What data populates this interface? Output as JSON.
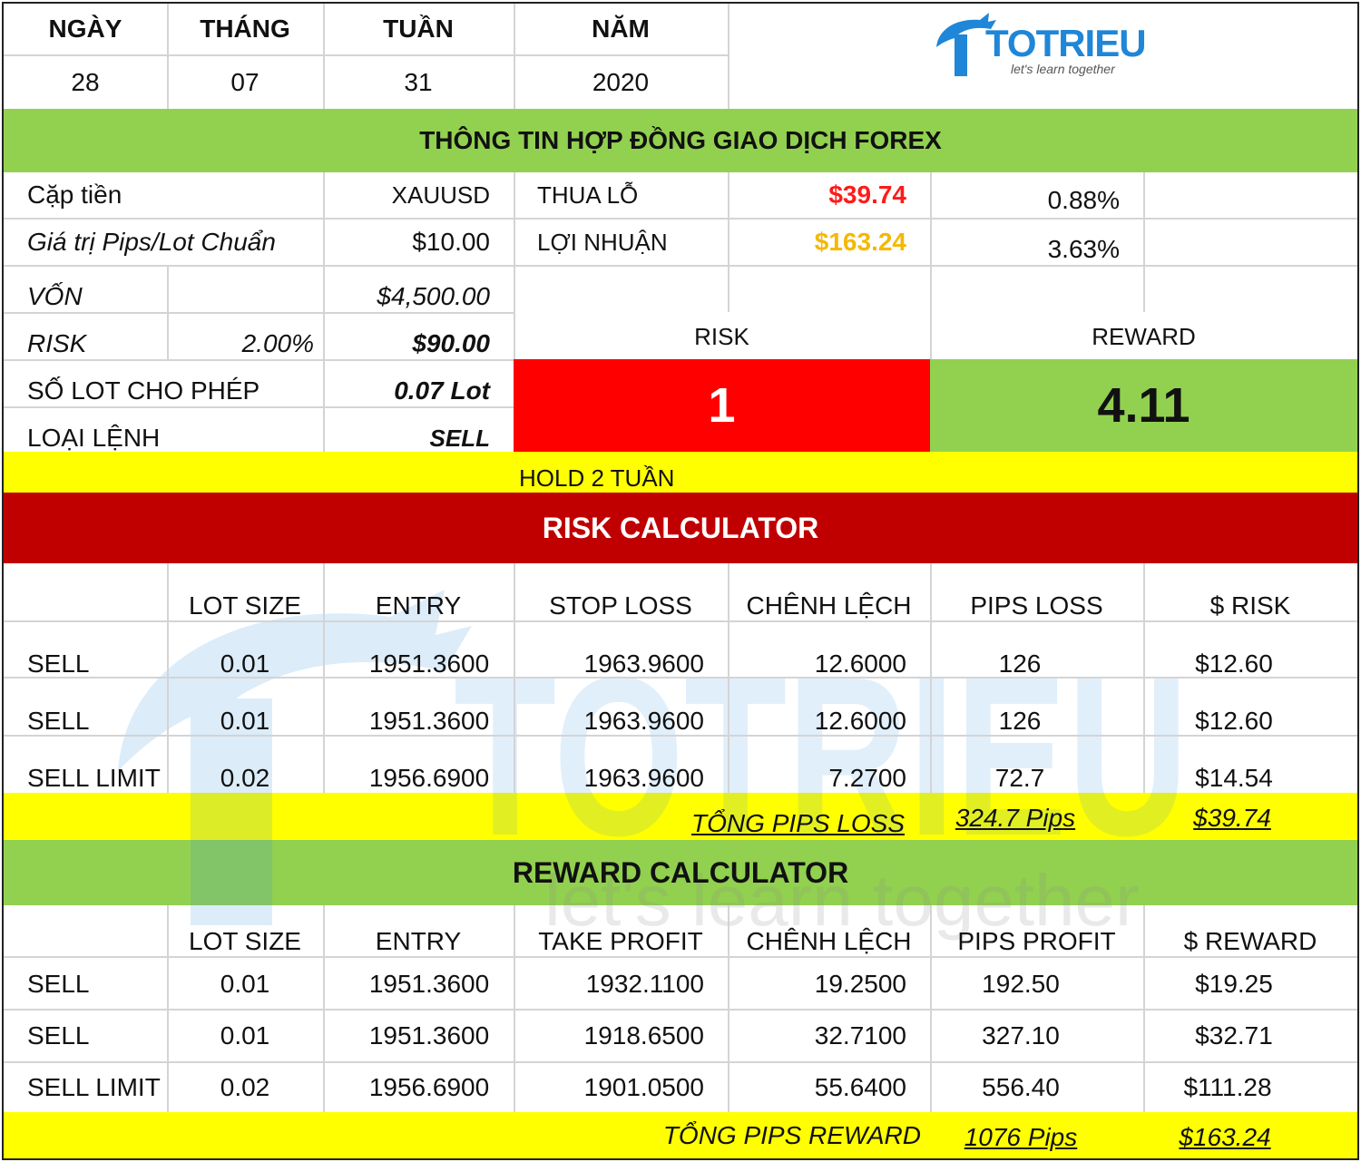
{
  "date": {
    "headers": [
      "NGÀY",
      "THÁNG",
      "TUẦN",
      "NĂM"
    ],
    "values": [
      "28",
      "07",
      "31",
      "2020"
    ]
  },
  "logo": {
    "name": "TOTRIEU",
    "tagline": "let's learn together"
  },
  "contract": {
    "title": "THÔNG TIN HỢP ĐỒNG GIAO DỊCH FOREX",
    "pair_label": "Cặp tiền",
    "pair_value": "XAUUSD",
    "pip_label": "Giá trị Pips/Lot Chuẩn",
    "pip_value": "$10.00",
    "loss_label": "THUA LỖ",
    "loss_value": "$39.74",
    "loss_pct": "0.88%",
    "profit_label": "LỢI NHUẬN",
    "profit_value": "$163.24",
    "profit_pct": "3.63%",
    "capital_label": "VỐN",
    "capital_value": "$4,500.00",
    "risk_label": "RISK",
    "risk_pct": "2.00%",
    "risk_value": "$90.00",
    "lot_label": "SỐ LOT CHO PHÉP",
    "lot_value": "0.07 Lot",
    "order_label": "LOẠI LỆNH",
    "order_value": "SELL",
    "rr_risk_label": "RISK",
    "rr_reward_label": "REWARD",
    "rr_risk_value": "1",
    "rr_reward_value": "4.11",
    "hold_note": "HOLD 2 TUẦN"
  },
  "risk_calc": {
    "title": "RISK CALCULATOR",
    "headers": [
      "",
      "LOT SIZE",
      "ENTRY",
      "STOP LOSS",
      "CHÊNH LỆCH",
      "PIPS LOSS",
      "$ RISK"
    ],
    "rows": [
      [
        "SELL",
        "0.01",
        "1951.3600",
        "1963.9600",
        "12.6000",
        "126",
        "$12.60"
      ],
      [
        "SELL",
        "0.01",
        "1951.3600",
        "1963.9600",
        "12.6000",
        "126",
        "$12.60"
      ],
      [
        "SELL LIMIT",
        "0.02",
        "1956.6900",
        "1963.9600",
        "7.2700",
        "72.7",
        "$14.54"
      ]
    ],
    "total_label": "TỔNG PIPS LOSS",
    "total_pips": "324.7 Pips",
    "total_money": "$39.74"
  },
  "reward_calc": {
    "title": "REWARD CALCULATOR",
    "headers": [
      "",
      "LOT SIZE",
      "ENTRY",
      "TAKE PROFIT",
      "CHÊNH LỆCH",
      "PIPS PROFIT",
      "$ REWARD"
    ],
    "rows": [
      [
        "SELL",
        "0.01",
        "1951.3600",
        "1932.1100",
        "19.2500",
        "192.50",
        "$19.25"
      ],
      [
        "SELL",
        "0.01",
        "1951.3600",
        "1918.6500",
        "32.7100",
        "327.10",
        "$32.71"
      ],
      [
        "SELL LIMIT",
        "0.02",
        "1956.6900",
        "1901.0500",
        "55.6400",
        "556.40",
        "$111.28"
      ]
    ],
    "total_label": "TỔNG PIPS REWARD",
    "total_pips": "1076 Pips",
    "total_money": "$163.24"
  },
  "colors": {
    "green": "#92d050",
    "red_banner": "#c00000",
    "risk_red": "#ff0000",
    "yellow": "#ffff00",
    "logo_blue": "#1f86d8"
  }
}
